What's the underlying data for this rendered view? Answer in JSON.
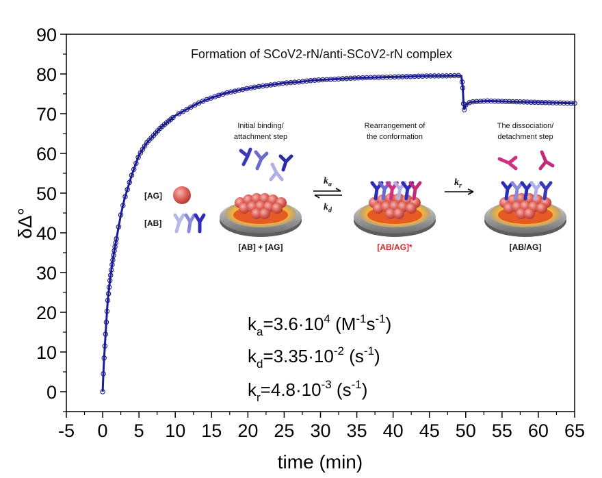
{
  "chart_data": {
    "type": "scatter",
    "title": "Formation of SCoV2-rN/anti-SCoV2-rN complex",
    "xlabel": "time (min)",
    "ylabel": "δΔ°",
    "xlim": [
      -5,
      65
    ],
    "ylim": [
      -5,
      90
    ],
    "xticks": [
      -5,
      0,
      5,
      10,
      15,
      20,
      25,
      30,
      35,
      40,
      45,
      50,
      55,
      60,
      65
    ],
    "yticks": [
      0,
      10,
      20,
      30,
      40,
      50,
      60,
      70,
      80,
      90
    ],
    "grid": false,
    "series": [
      {
        "style": "dark blue line with open circle markers",
        "color": "#1a1aa0",
        "points": [
          [
            0,
            0
          ],
          [
            0.1,
            4.5
          ],
          [
            0.2,
            8.5
          ],
          [
            0.3,
            11.5
          ],
          [
            0.5,
            17.5
          ],
          [
            0.7,
            23
          ],
          [
            1.0,
            28
          ],
          [
            1.3,
            32
          ],
          [
            1.6,
            35.5
          ],
          [
            2.0,
            39.5
          ],
          [
            2.5,
            44.5
          ],
          [
            3.0,
            48.5
          ],
          [
            3.5,
            51.5
          ],
          [
            4.0,
            54.5
          ],
          [
            4.5,
            57
          ],
          [
            5.0,
            59.5
          ],
          [
            5.5,
            61
          ],
          [
            6.0,
            62.5
          ],
          [
            7.0,
            64.5
          ],
          [
            8.0,
            66.5
          ],
          [
            9.0,
            68
          ],
          [
            10.0,
            69.5
          ],
          [
            11.0,
            70.5
          ],
          [
            12.0,
            71.5
          ],
          [
            13.0,
            72.5
          ],
          [
            14.0,
            73.3
          ],
          [
            15.0,
            74.0
          ],
          [
            17.0,
            75.2
          ],
          [
            19.0,
            76.0
          ],
          [
            21.0,
            76.7
          ],
          [
            23.0,
            77.2
          ],
          [
            25.0,
            77.7
          ],
          [
            27.0,
            78.0
          ],
          [
            29.0,
            78.4
          ],
          [
            31.0,
            78.6
          ],
          [
            33.0,
            78.8
          ],
          [
            35.0,
            79.0
          ],
          [
            37.0,
            79.1
          ],
          [
            39.0,
            79.2
          ],
          [
            41.0,
            79.3
          ],
          [
            43.0,
            79.4
          ],
          [
            45.0,
            79.5
          ],
          [
            47.0,
            79.5
          ],
          [
            49.0,
            79.6
          ],
          [
            49.4,
            79.5
          ],
          [
            49.6,
            76.5
          ],
          [
            49.7,
            72.5
          ],
          [
            49.8,
            71.0
          ],
          [
            50.0,
            72.2
          ],
          [
            50.5,
            72.8
          ],
          [
            51.0,
            73.0
          ],
          [
            53.0,
            73.2
          ],
          [
            55.0,
            73.1
          ],
          [
            57.0,
            73.0
          ],
          [
            59.0,
            72.9
          ],
          [
            61.0,
            72.8
          ],
          [
            63.0,
            72.7
          ],
          [
            65.0,
            72.6
          ]
        ]
      }
    ],
    "annotations": {
      "steps": [
        "Initial binding/\nattachment step",
        "Rearrangement of\nthe conformation",
        "The dissociation/\ndetachment step"
      ],
      "states": [
        "[AB] + [AG]",
        "[AB/AG]*",
        "[AB/AG]"
      ],
      "legend_ag": "[AG]",
      "legend_ab": "[AB]",
      "state_star_color": "#d02a2a",
      "rates": [
        {
          "symbol": "k",
          "sub": "a",
          "text": "=3.6·10",
          "exp": "4",
          "unit": " (M",
          "unit_exp": "-1",
          "unit2": "s",
          "unit2_exp": "-1",
          "close": ")"
        },
        {
          "symbol": "k",
          "sub": "d",
          "text": "=3.35·10",
          "exp": "-2",
          "unit": " (s",
          "unit_exp": "-1",
          "unit2": "",
          "unit2_exp": "",
          "close": ")"
        },
        {
          "symbol": "k",
          "sub": "r",
          "text": "=4.8·10",
          "exp": "-3",
          "unit": " (s",
          "unit_exp": "-1",
          "unit2": "",
          "unit2_exp": "",
          "close": ")"
        }
      ],
      "arrow_labels": [
        {
          "symbol": "k",
          "sub": "a"
        },
        {
          "symbol": "k",
          "sub": "d"
        },
        {
          "symbol": "k",
          "sub": "r"
        }
      ]
    }
  }
}
